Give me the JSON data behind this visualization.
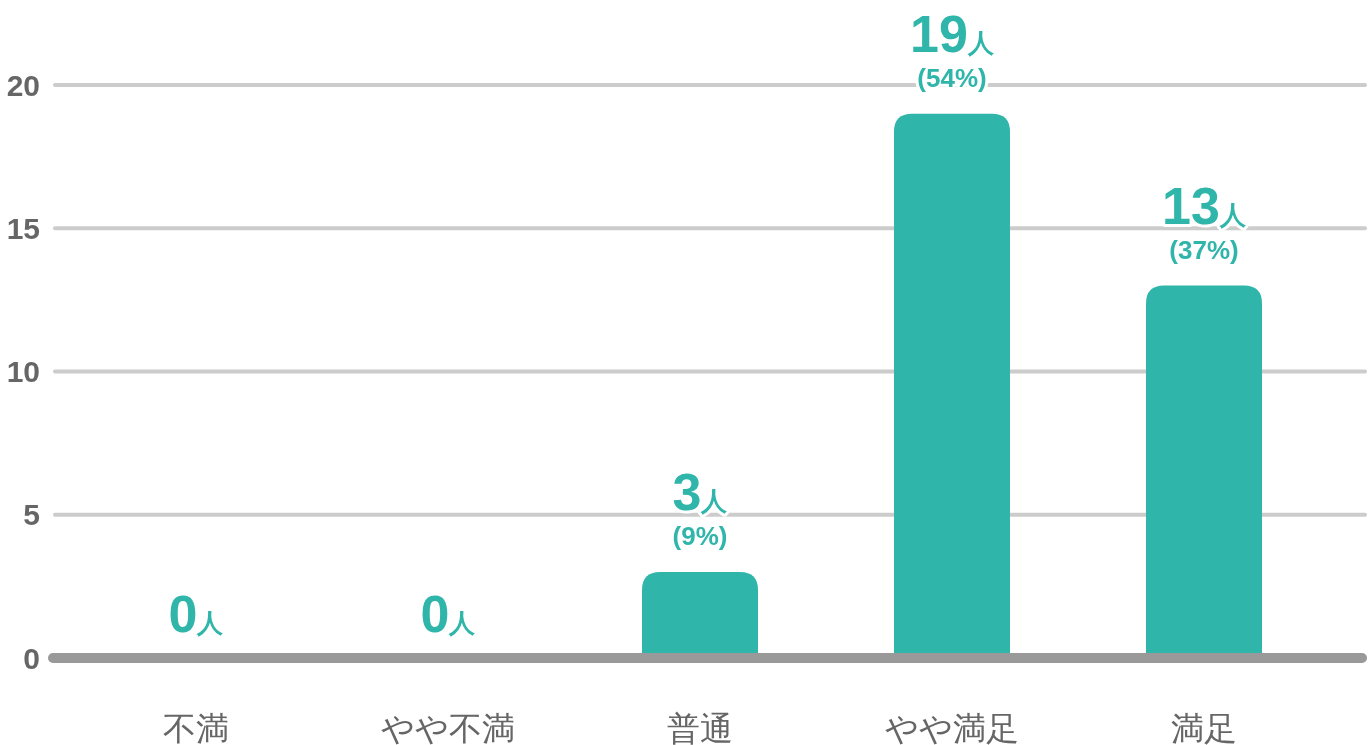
{
  "chart_data": {
    "type": "bar",
    "categories": [
      "不満",
      "やや不満",
      "普通",
      "やや満足",
      "満足"
    ],
    "values": [
      0,
      0,
      3,
      19,
      13
    ],
    "color": "#2fb5a9",
    "value_labels": [
      "0人",
      "0人",
      "3人",
      "19人",
      "13人"
    ],
    "annotations": [
      {
        "text": "(9%)",
        "x": "普通",
        "y": 3
      },
      {
        "text": "(54%)",
        "x": "やや満足",
        "y": 19
      },
      {
        "text": "(37%)",
        "x": "満足",
        "y": 13
      }
    ],
    "ylim": [
      0,
      20
    ],
    "yticks": [
      0,
      5,
      10,
      15,
      20
    ],
    "grid": "y"
  }
}
